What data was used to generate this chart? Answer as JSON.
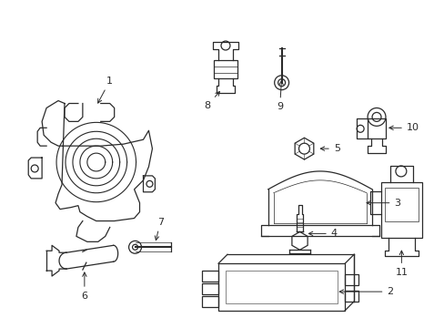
{
  "bg_color": "#ffffff",
  "line_color": "#2a2a2a",
  "text_color": "#2a2a2a",
  "figsize": [
    4.89,
    3.6
  ],
  "dpi": 100
}
